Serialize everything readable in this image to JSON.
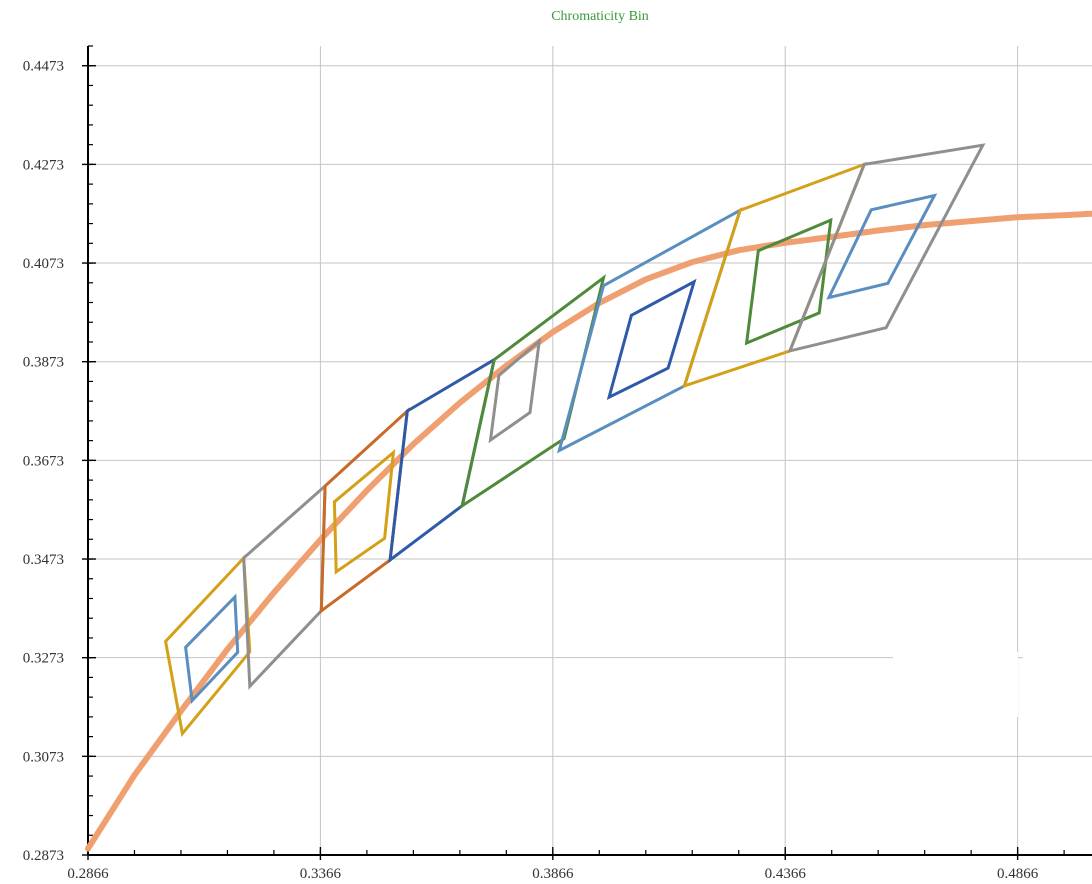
{
  "chart_data": {
    "type": "line",
    "title": "Chromaticity Bin",
    "title_color": "#3a9a3a",
    "xlabel": "",
    "ylabel": "",
    "xlim": [
      0.2866,
      0.5026
    ],
    "ylim": [
      0.2873,
      0.4513
    ],
    "x_ticks": [
      0.2866,
      0.3366,
      0.3866,
      0.4366,
      0.4866
    ],
    "x_tick_labels": [
      "0.2866",
      "0.3366",
      "0.3866",
      "0.4366",
      "0.4866"
    ],
    "y_ticks": [
      0.2873,
      0.3073,
      0.3273,
      0.3473,
      0.3673,
      0.3873,
      0.4073,
      0.4273,
      0.4473
    ],
    "y_tick_labels": [
      "0.2873",
      "0.3073",
      "0.3273",
      "0.3473",
      "0.3673",
      "0.3873",
      "0.4073",
      "0.4273",
      "0.4473"
    ],
    "grid": true,
    "legend": "none",
    "series": [
      {
        "kind": "curve",
        "color": "#f0a070",
        "points": [
          [
            0.2866,
            0.2886
          ],
          [
            0.2966,
            0.3035
          ],
          [
            0.3066,
            0.3165
          ],
          [
            0.3166,
            0.329
          ],
          [
            0.3266,
            0.3405
          ],
          [
            0.3366,
            0.3512
          ],
          [
            0.3466,
            0.3612
          ],
          [
            0.3566,
            0.3706
          ],
          [
            0.3666,
            0.379
          ],
          [
            0.3766,
            0.3865
          ],
          [
            0.3866,
            0.3933
          ],
          [
            0.3966,
            0.3992
          ],
          [
            0.4066,
            0.404
          ],
          [
            0.4166,
            0.4075
          ],
          [
            0.4266,
            0.4099
          ],
          [
            0.4366,
            0.4114
          ],
          [
            0.4466,
            0.4126
          ],
          [
            0.4566,
            0.4139
          ],
          [
            0.4666,
            0.415
          ],
          [
            0.4766,
            0.4158
          ],
          [
            0.4866,
            0.4166
          ],
          [
            0.4966,
            0.417
          ],
          [
            0.5026,
            0.4173
          ]
        ]
      },
      {
        "kind": "quad",
        "color": "#d4a017",
        "points": [
          [
            0.3033,
            0.3306
          ],
          [
            0.3201,
            0.3475
          ],
          [
            0.3214,
            0.3285
          ],
          [
            0.3069,
            0.3119
          ]
        ]
      },
      {
        "kind": "quad",
        "color": "#5b8ec0",
        "points": [
          [
            0.3076,
            0.3294
          ],
          [
            0.3182,
            0.3396
          ],
          [
            0.3188,
            0.3284
          ],
          [
            0.309,
            0.3186
          ]
        ]
      },
      {
        "kind": "quad",
        "color": "#8f8f8f",
        "points": [
          [
            0.3201,
            0.3475
          ],
          [
            0.3376,
            0.3621
          ],
          [
            0.3368,
            0.3368
          ],
          [
            0.3214,
            0.3215
          ]
        ]
      },
      {
        "kind": "quad",
        "color": "#c96a28",
        "points": [
          [
            0.3376,
            0.3621
          ],
          [
            0.3553,
            0.3773
          ],
          [
            0.3516,
            0.3471
          ],
          [
            0.3368,
            0.3368
          ]
        ]
      },
      {
        "kind": "quad",
        "color": "#d4a017",
        "points": [
          [
            0.3396,
            0.3589
          ],
          [
            0.3523,
            0.3689
          ],
          [
            0.3504,
            0.3515
          ],
          [
            0.34,
            0.3447
          ]
        ]
      },
      {
        "kind": "quad",
        "color": "#2e5aa8",
        "points": [
          [
            0.3553,
            0.3773
          ],
          [
            0.374,
            0.3877
          ],
          [
            0.3671,
            0.3581
          ],
          [
            0.3516,
            0.3471
          ]
        ]
      },
      {
        "kind": "quad",
        "color": "#8f8f8f",
        "points": [
          [
            0.375,
            0.3845
          ],
          [
            0.3837,
            0.3915
          ],
          [
            0.3817,
            0.377
          ],
          [
            0.3732,
            0.3714
          ]
        ]
      },
      {
        "kind": "quad",
        "color": "#4e8a3a",
        "points": [
          [
            0.374,
            0.3877
          ],
          [
            0.3975,
            0.4043
          ],
          [
            0.389,
            0.3717
          ],
          [
            0.3671,
            0.3581
          ]
        ]
      },
      {
        "kind": "quad",
        "color": "#5b8ec0",
        "points": [
          [
            0.3975,
            0.4027
          ],
          [
            0.4269,
            0.418
          ],
          [
            0.4149,
            0.3824
          ],
          [
            0.388,
            0.3693
          ]
        ]
      },
      {
        "kind": "quad",
        "color": "#2e5aa8",
        "points": [
          [
            0.4035,
            0.3967
          ],
          [
            0.417,
            0.4035
          ],
          [
            0.4114,
            0.386
          ],
          [
            0.3987,
            0.3801
          ]
        ]
      },
      {
        "kind": "quad",
        "color": "#4e8a3a",
        "points": [
          [
            0.4308,
            0.4098
          ],
          [
            0.4464,
            0.416
          ],
          [
            0.4439,
            0.3972
          ],
          [
            0.4283,
            0.3911
          ]
        ]
      },
      {
        "kind": "quad",
        "color": "#d4a017",
        "points": [
          [
            0.4269,
            0.418
          ],
          [
            0.4536,
            0.4273
          ],
          [
            0.4376,
            0.3895
          ],
          [
            0.4149,
            0.3824
          ]
        ]
      },
      {
        "kind": "quad",
        "color": "#8f8f8f",
        "points": [
          [
            0.4536,
            0.4273
          ],
          [
            0.4791,
            0.4312
          ],
          [
            0.4583,
            0.3942
          ],
          [
            0.4376,
            0.3895
          ]
        ]
      },
      {
        "kind": "quad",
        "color": "#5b8ec0",
        "points": [
          [
            0.4551,
            0.4181
          ],
          [
            0.4687,
            0.421
          ],
          [
            0.4587,
            0.4032
          ],
          [
            0.446,
            0.4003
          ]
        ]
      }
    ]
  }
}
